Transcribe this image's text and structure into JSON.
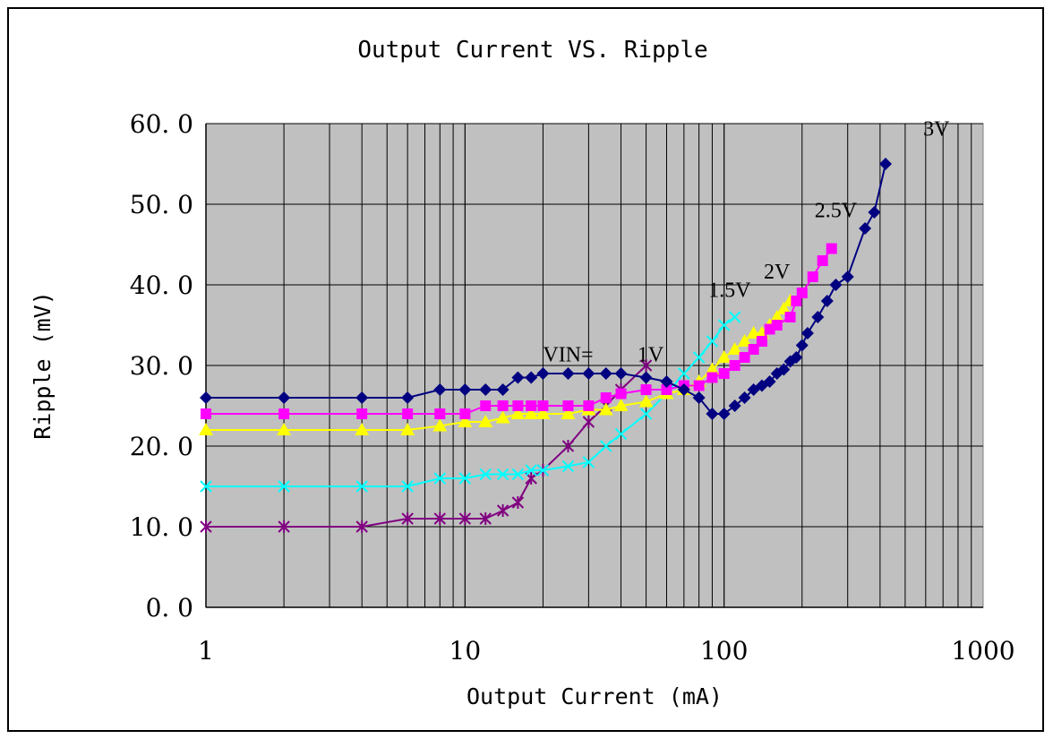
{
  "chart_data": {
    "type": "line",
    "title": "Output Current VS. Ripple",
    "xlabel": "Output Current (mA)",
    "ylabel": "Ripple (mV)",
    "xscale": "log",
    "xlim": [
      1,
      1000
    ],
    "ylim": [
      0,
      60
    ],
    "x_ticks": [
      "1",
      "10",
      "100",
      "1000"
    ],
    "y_ticks": [
      "0. 0",
      "10. 0",
      "20. 0",
      "30. 0",
      "40. 0",
      "50. 0",
      "60. 0"
    ],
    "grid": true,
    "plot_background": "#c0c0c0",
    "legend": "none",
    "annotations": [
      {
        "text": "VIN=",
        "x": 25,
        "y": 30.5
      },
      {
        "text": "1V",
        "x": 52,
        "y": 30.5
      },
      {
        "text": "1.5V",
        "x": 105,
        "y": 38.5
      },
      {
        "text": "2V",
        "x": 160,
        "y": 40.8
      },
      {
        "text": "2.5V",
        "x": 270,
        "y": 48.4
      },
      {
        "text": "3V",
        "x": 660,
        "y": 58.5
      }
    ],
    "series": [
      {
        "color": "#000080",
        "marker": "diamond",
        "x": [
          1,
          2,
          4,
          6,
          8,
          10,
          12,
          14,
          16,
          18,
          20,
          25,
          30,
          35,
          40,
          50,
          60,
          70,
          80,
          90,
          100,
          110,
          120,
          130,
          140,
          150,
          160,
          170,
          180,
          190,
          200,
          210,
          230,
          250,
          270,
          300,
          350,
          380,
          420
        ],
        "y": [
          26,
          26,
          26,
          26,
          27,
          27,
          27,
          27,
          28.5,
          28.5,
          29,
          29,
          29,
          29,
          29,
          28.5,
          28,
          27,
          26,
          24,
          24,
          25,
          26,
          27,
          27.5,
          28,
          29,
          29.5,
          30.5,
          31,
          32.5,
          34,
          36,
          38,
          40,
          41,
          47,
          49,
          55
        ]
      },
      {
        "color": "#ff00ff",
        "marker": "square",
        "x": [
          1,
          2,
          4,
          6,
          8,
          10,
          12,
          14,
          16,
          18,
          20,
          25,
          30,
          35,
          40,
          50,
          60,
          70,
          80,
          90,
          100,
          110,
          120,
          130,
          140,
          150,
          160,
          180,
          190,
          200,
          220,
          240,
          260
        ],
        "y": [
          24,
          24,
          24,
          24,
          24,
          24,
          25,
          25,
          25,
          25,
          25,
          25,
          25,
          26,
          26.5,
          27,
          27,
          27.5,
          27.5,
          28.5,
          29,
          30,
          31,
          32,
          33,
          34.5,
          35,
          36,
          38,
          39,
          41,
          43,
          44.5
        ]
      },
      {
        "color": "#ffff00",
        "marker": "triangle",
        "x": [
          1,
          2,
          4,
          6,
          8,
          10,
          12,
          14,
          16,
          18,
          20,
          25,
          30,
          35,
          40,
          50,
          60,
          70,
          80,
          90,
          100,
          110,
          120,
          130,
          140,
          150,
          160,
          170,
          180
        ],
        "y": [
          22,
          22,
          22,
          22,
          22.5,
          23,
          23,
          23.5,
          24,
          24,
          24,
          24,
          24.5,
          24.5,
          25,
          25.5,
          26.5,
          27,
          28,
          29.5,
          31,
          32,
          33,
          34,
          34,
          35,
          36,
          37,
          38
        ]
      },
      {
        "color": "#00ffff",
        "marker": "x",
        "x": [
          1,
          2,
          4,
          6,
          8,
          10,
          12,
          14,
          16,
          18,
          20,
          25,
          30,
          35,
          40,
          50,
          60,
          70,
          80,
          90,
          100,
          110
        ],
        "y": [
          15,
          15,
          15,
          15,
          16,
          16,
          16.5,
          16.5,
          16.5,
          17,
          17,
          17.5,
          18,
          20,
          21.5,
          24,
          26.5,
          29,
          31,
          33,
          35,
          36
        ]
      },
      {
        "color": "#800080",
        "marker": "star",
        "x": [
          1,
          2,
          4,
          6,
          8,
          10,
          12,
          14,
          16,
          18,
          20,
          25,
          30,
          35,
          40,
          50
        ],
        "y": [
          10,
          10,
          10,
          11,
          11,
          11,
          11,
          12,
          13,
          16,
          17,
          20,
          23,
          25,
          27,
          30
        ]
      }
    ]
  }
}
